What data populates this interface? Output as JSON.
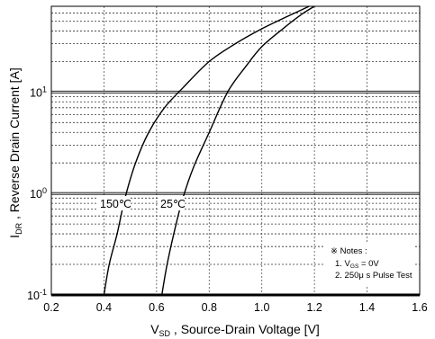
{
  "chart_data": {
    "type": "line",
    "xlabel": {
      "main": "V",
      "sub": "SD",
      "rest": " , Source-Drain Voltage  [V]"
    },
    "ylabel": {
      "main": "I",
      "sub": "DR",
      "rest": " , Reverse Drain Current  [A]"
    },
    "xlim": [
      0.2,
      1.6
    ],
    "ylim": [
      0.1,
      70
    ],
    "yscale": "log",
    "grid": true,
    "x_ticks": [
      0.2,
      0.4,
      0.6,
      0.8,
      1.0,
      1.2,
      1.4,
      1.6
    ],
    "x_tick_labels": [
      "0.2",
      "0.4",
      "0.6",
      "0.8",
      "1.0",
      "1.2",
      "1.4",
      "1.6"
    ],
    "y_ticks": [
      {
        "value": 0.1,
        "base": "10",
        "exp": "-1"
      },
      {
        "value": 1,
        "base": "10",
        "exp": "0"
      },
      {
        "value": 10,
        "base": "10",
        "exp": "1"
      }
    ],
    "series": [
      {
        "name": "150℃",
        "x": [
          0.4,
          0.42,
          0.45,
          0.48,
          0.52,
          0.57,
          0.63,
          0.7,
          0.8,
          0.9,
          1.0,
          1.1,
          1.18
        ],
        "y": [
          0.1,
          0.2,
          0.4,
          0.9,
          2,
          4,
          7,
          11,
          20,
          30,
          42,
          56,
          70
        ]
      },
      {
        "name": "25℃",
        "x": [
          0.62,
          0.64,
          0.67,
          0.7,
          0.74,
          0.8,
          0.87,
          0.94,
          1.0,
          1.08,
          1.15,
          1.2
        ],
        "y": [
          0.1,
          0.2,
          0.45,
          0.9,
          1.8,
          4,
          10,
          18,
          28,
          42,
          58,
          70
        ]
      }
    ],
    "curve_labels": [
      "150℃",
      "25℃"
    ],
    "annotations": {
      "notes_title": "※ Notes :",
      "note1_prefix": "1. V",
      "note1_sub": "GS",
      "note1_suffix": " = 0V",
      "note2": "2. 250μ s Pulse Test"
    }
  }
}
